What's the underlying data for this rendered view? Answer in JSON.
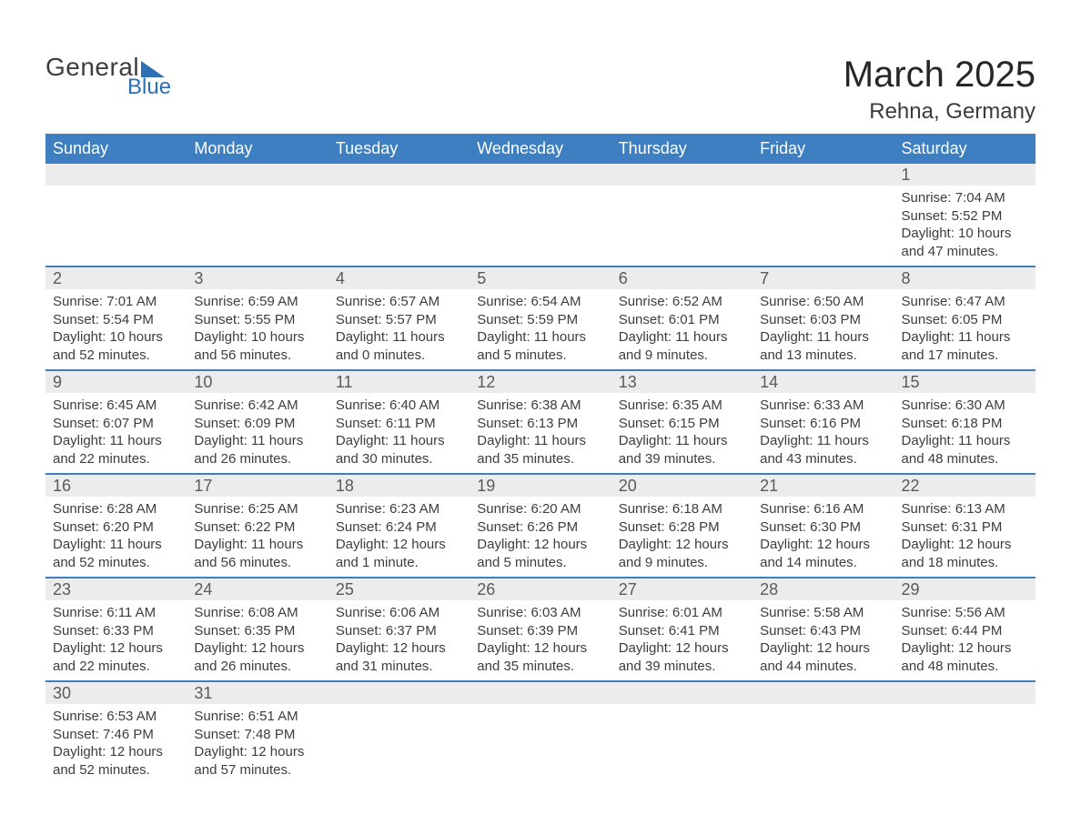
{
  "logo": {
    "text_general": "General",
    "text_blue": "Blue"
  },
  "header": {
    "month_year": "March 2025",
    "location": "Rehna, Germany"
  },
  "colors": {
    "header_bg": "#3d7fc0",
    "header_text": "#ffffff",
    "daynum_bg": "#ececec",
    "row_divider": "#3d7fc0",
    "body_text": "#3d3d3d",
    "logo_accent": "#2d6fb5"
  },
  "weekdays": [
    "Sunday",
    "Monday",
    "Tuesday",
    "Wednesday",
    "Thursday",
    "Friday",
    "Saturday"
  ],
  "first_weekday_index": 6,
  "days": [
    {
      "n": 1,
      "sunrise": "7:04 AM",
      "sunset": "5:52 PM",
      "daylight": "10 hours and 47 minutes."
    },
    {
      "n": 2,
      "sunrise": "7:01 AM",
      "sunset": "5:54 PM",
      "daylight": "10 hours and 52 minutes."
    },
    {
      "n": 3,
      "sunrise": "6:59 AM",
      "sunset": "5:55 PM",
      "daylight": "10 hours and 56 minutes."
    },
    {
      "n": 4,
      "sunrise": "6:57 AM",
      "sunset": "5:57 PM",
      "daylight": "11 hours and 0 minutes."
    },
    {
      "n": 5,
      "sunrise": "6:54 AM",
      "sunset": "5:59 PM",
      "daylight": "11 hours and 5 minutes."
    },
    {
      "n": 6,
      "sunrise": "6:52 AM",
      "sunset": "6:01 PM",
      "daylight": "11 hours and 9 minutes."
    },
    {
      "n": 7,
      "sunrise": "6:50 AM",
      "sunset": "6:03 PM",
      "daylight": "11 hours and 13 minutes."
    },
    {
      "n": 8,
      "sunrise": "6:47 AM",
      "sunset": "6:05 PM",
      "daylight": "11 hours and 17 minutes."
    },
    {
      "n": 9,
      "sunrise": "6:45 AM",
      "sunset": "6:07 PM",
      "daylight": "11 hours and 22 minutes."
    },
    {
      "n": 10,
      "sunrise": "6:42 AM",
      "sunset": "6:09 PM",
      "daylight": "11 hours and 26 minutes."
    },
    {
      "n": 11,
      "sunrise": "6:40 AM",
      "sunset": "6:11 PM",
      "daylight": "11 hours and 30 minutes."
    },
    {
      "n": 12,
      "sunrise": "6:38 AM",
      "sunset": "6:13 PM",
      "daylight": "11 hours and 35 minutes."
    },
    {
      "n": 13,
      "sunrise": "6:35 AM",
      "sunset": "6:15 PM",
      "daylight": "11 hours and 39 minutes."
    },
    {
      "n": 14,
      "sunrise": "6:33 AM",
      "sunset": "6:16 PM",
      "daylight": "11 hours and 43 minutes."
    },
    {
      "n": 15,
      "sunrise": "6:30 AM",
      "sunset": "6:18 PM",
      "daylight": "11 hours and 48 minutes."
    },
    {
      "n": 16,
      "sunrise": "6:28 AM",
      "sunset": "6:20 PM",
      "daylight": "11 hours and 52 minutes."
    },
    {
      "n": 17,
      "sunrise": "6:25 AM",
      "sunset": "6:22 PM",
      "daylight": "11 hours and 56 minutes."
    },
    {
      "n": 18,
      "sunrise": "6:23 AM",
      "sunset": "6:24 PM",
      "daylight": "12 hours and 1 minute."
    },
    {
      "n": 19,
      "sunrise": "6:20 AM",
      "sunset": "6:26 PM",
      "daylight": "12 hours and 5 minutes."
    },
    {
      "n": 20,
      "sunrise": "6:18 AM",
      "sunset": "6:28 PM",
      "daylight": "12 hours and 9 minutes."
    },
    {
      "n": 21,
      "sunrise": "6:16 AM",
      "sunset": "6:30 PM",
      "daylight": "12 hours and 14 minutes."
    },
    {
      "n": 22,
      "sunrise": "6:13 AM",
      "sunset": "6:31 PM",
      "daylight": "12 hours and 18 minutes."
    },
    {
      "n": 23,
      "sunrise": "6:11 AM",
      "sunset": "6:33 PM",
      "daylight": "12 hours and 22 minutes."
    },
    {
      "n": 24,
      "sunrise": "6:08 AM",
      "sunset": "6:35 PM",
      "daylight": "12 hours and 26 minutes."
    },
    {
      "n": 25,
      "sunrise": "6:06 AM",
      "sunset": "6:37 PM",
      "daylight": "12 hours and 31 minutes."
    },
    {
      "n": 26,
      "sunrise": "6:03 AM",
      "sunset": "6:39 PM",
      "daylight": "12 hours and 35 minutes."
    },
    {
      "n": 27,
      "sunrise": "6:01 AM",
      "sunset": "6:41 PM",
      "daylight": "12 hours and 39 minutes."
    },
    {
      "n": 28,
      "sunrise": "5:58 AM",
      "sunset": "6:43 PM",
      "daylight": "12 hours and 44 minutes."
    },
    {
      "n": 29,
      "sunrise": "5:56 AM",
      "sunset": "6:44 PM",
      "daylight": "12 hours and 48 minutes."
    },
    {
      "n": 30,
      "sunrise": "6:53 AM",
      "sunset": "7:46 PM",
      "daylight": "12 hours and 52 minutes."
    },
    {
      "n": 31,
      "sunrise": "6:51 AM",
      "sunset": "7:48 PM",
      "daylight": "12 hours and 57 minutes."
    }
  ],
  "labels": {
    "sunrise_prefix": "Sunrise: ",
    "sunset_prefix": "Sunset: ",
    "daylight_prefix": "Daylight: "
  }
}
